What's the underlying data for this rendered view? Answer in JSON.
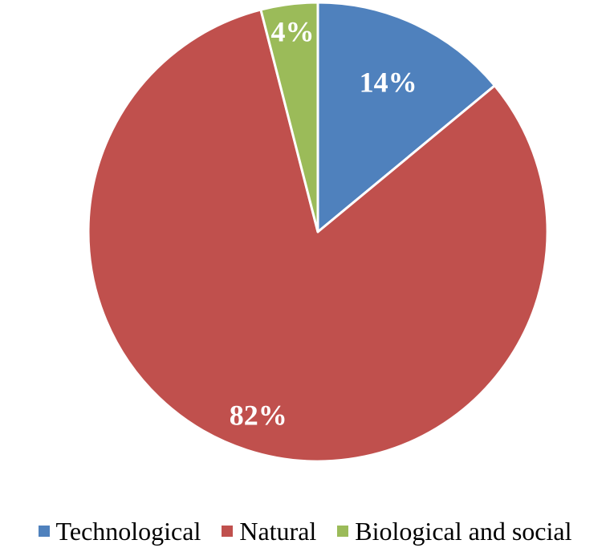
{
  "chart_data": {
    "type": "pie",
    "title": "",
    "legend_position": "bottom",
    "slices": [
      {
        "label": "Technological",
        "value": 14,
        "display": "14%",
        "color": "#4f81bd"
      },
      {
        "label": "Natural",
        "value": 82,
        "display": "82%",
        "color": "#c0504d"
      },
      {
        "label": "Biological and social",
        "value": 4,
        "display": "4%",
        "color": "#9bbb59"
      }
    ]
  }
}
